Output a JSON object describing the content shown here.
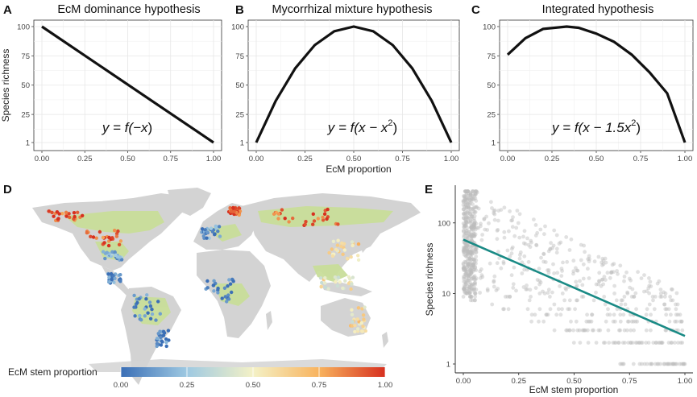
{
  "panels": {
    "A": {
      "letter": "A",
      "title": "EcM dominance hypothesis",
      "ylabel": "Species richness"
    },
    "B": {
      "letter": "B",
      "title": "Mycorrhizal mixture hypothesis",
      "xlabel": "EcM proportion"
    },
    "C": {
      "letter": "C",
      "title": "Integrated hypothesis"
    },
    "D": {
      "letter": "D",
      "legend_title": "EcM stem proportion"
    },
    "E": {
      "letter": "E",
      "xlabel": "EcM stem proportion",
      "ylabel": "Species richness"
    }
  },
  "colors": {
    "line": "#111111",
    "trend": "#1a8a85",
    "points": "#bdbdbd",
    "land": "#d3d3d3",
    "vegetation": "#c9de9a"
  },
  "chart_data": [
    {
      "id": "A",
      "type": "line",
      "title": "EcM dominance hypothesis",
      "equation": {
        "left": "y = f(",
        "body": "−x",
        "right": ")"
      },
      "x": [
        0,
        1
      ],
      "y": [
        100,
        1
      ],
      "xlim": [
        0,
        1
      ],
      "ylim": [
        0,
        100
      ],
      "xticks": [
        "0.00",
        "0.25",
        "0.50",
        "0.75",
        "1.00"
      ],
      "yticks": [
        "1",
        "25",
        "50",
        "75",
        "100"
      ],
      "ylabel": "Species richness",
      "grid": true
    },
    {
      "id": "B",
      "type": "line",
      "title": "Mycorrhizal mixture hypothesis",
      "equation": {
        "left": "y = f(",
        "body": "x − x",
        "sup": "2",
        "right": ")"
      },
      "x": [
        0,
        0.1,
        0.2,
        0.3,
        0.4,
        0.5,
        0.6,
        0.7,
        0.8,
        0.9,
        1.0
      ],
      "y": [
        1,
        36.6,
        64.4,
        84.2,
        96.0,
        100,
        96.0,
        84.2,
        64.4,
        36.6,
        1
      ],
      "xlim": [
        0,
        1
      ],
      "ylim": [
        0,
        100
      ],
      "xticks": [
        "0.00",
        "0.25",
        "0.50",
        "0.75",
        "1.00"
      ],
      "yticks": [
        "1",
        "25",
        "50",
        "75",
        "100"
      ],
      "xlabel": "EcM proportion",
      "grid": true
    },
    {
      "id": "C",
      "type": "line",
      "title": "Integrated hypothesis",
      "equation": {
        "left": "y = f(",
        "body": "x − 1.5x",
        "sup": "2",
        "right": ")"
      },
      "x": [
        0,
        0.1,
        0.2,
        0.333,
        0.4,
        0.5,
        0.6,
        0.7,
        0.8,
        0.9,
        1.0
      ],
      "y": [
        76,
        90,
        98,
        100,
        99,
        94,
        87,
        76,
        61,
        43,
        1
      ],
      "xlim": [
        0,
        1
      ],
      "ylim": [
        0,
        100
      ],
      "xticks": [
        "0.00",
        "0.25",
        "0.50",
        "0.75",
        "1.00"
      ],
      "yticks": [
        "1",
        "25",
        "50",
        "75",
        "100"
      ],
      "grid": true
    },
    {
      "id": "D",
      "type": "map",
      "legend": {
        "title": "EcM stem proportion",
        "ticks": [
          "0.00",
          "0.25",
          "0.50",
          "0.75",
          "1.00"
        ],
        "colors": [
          "#3b6fb6",
          "#9ec9e2",
          "#f4f1c6",
          "#f8b35e",
          "#d7301f"
        ]
      },
      "clusters": [
        {
          "region": "Alaska/Canada west",
          "ecm": 0.95
        },
        {
          "region": "Eastern North America",
          "ecm": 0.9
        },
        {
          "region": "Southeastern US",
          "ecm": 0.2
        },
        {
          "region": "Central America",
          "ecm": 0.05
        },
        {
          "region": "Amazon",
          "ecm": 0.03
        },
        {
          "region": "Atlantic Forest",
          "ecm": 0.05
        },
        {
          "region": "Europe",
          "ecm": 0.1
        },
        {
          "region": "Scandinavia",
          "ecm": 0.97
        },
        {
          "region": "Siberia",
          "ecm": 0.95
        },
        {
          "region": "Central Africa",
          "ecm": 0.05
        },
        {
          "region": "East Asia",
          "ecm": 0.6
        },
        {
          "region": "Southeast Asia",
          "ecm": 0.5
        },
        {
          "region": "Australia east",
          "ecm": 0.55
        }
      ]
    },
    {
      "id": "E",
      "type": "scatter",
      "xlabel": "EcM stem proportion",
      "ylabel": "Species richness",
      "xlim": [
        0,
        1
      ],
      "ylog": true,
      "ylim": [
        1,
        300
      ],
      "xticks": [
        "0.00",
        "0.25",
        "0.50",
        "0.75",
        "1.00"
      ],
      "yticks": [
        "1",
        "10",
        "100"
      ],
      "trend": {
        "x": [
          0,
          1
        ],
        "y": [
          58,
          2.5
        ]
      }
    }
  ]
}
